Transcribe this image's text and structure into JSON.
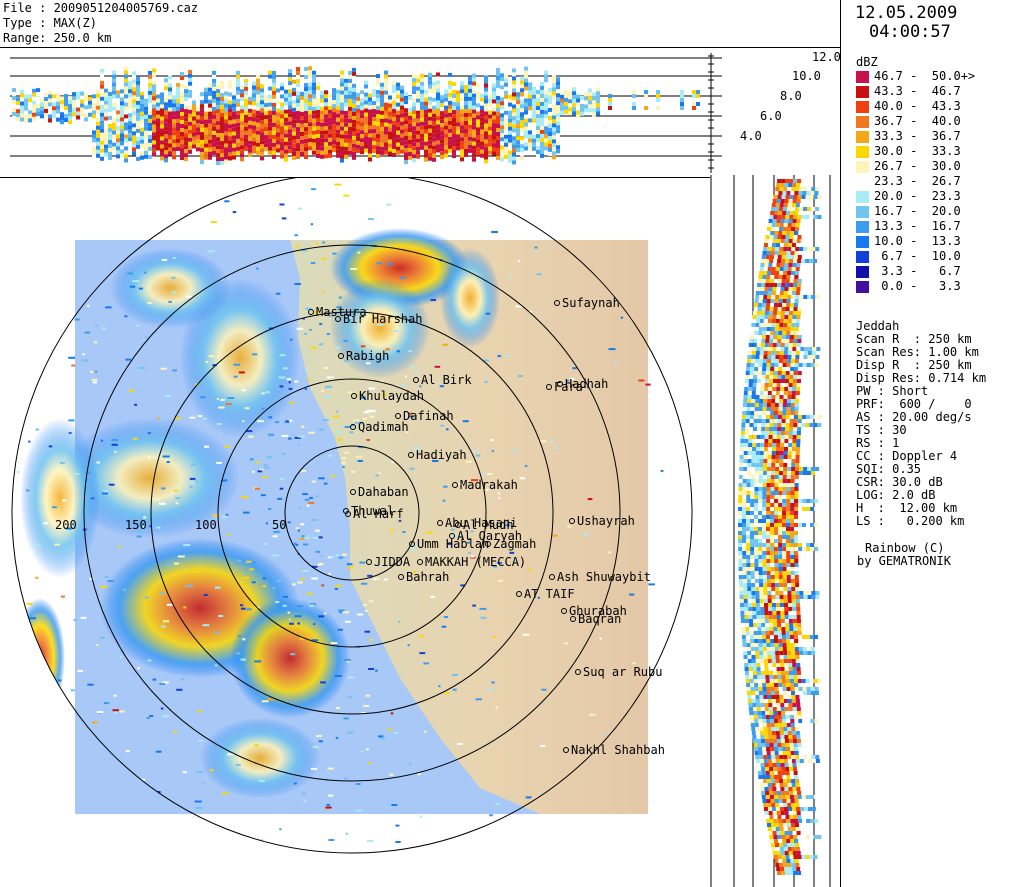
{
  "header": {
    "file_line": "File : 2009051204005769.caz",
    "type_line": "Type : MAX(Z)",
    "range_line": "Range: 250.0 km"
  },
  "datetime": {
    "date": "12.05.2009",
    "time": "04:00:57"
  },
  "legend": {
    "unit": "dBZ",
    "entries": [
      {
        "range": "46.7 -  50.0+>",
        "color": "#c8104a"
      },
      {
        "range": "43.3 -  46.7",
        "color": "#c81010"
      },
      {
        "range": "40.0 -  43.3",
        "color": "#f04010"
      },
      {
        "range": "36.7 -  40.0",
        "color": "#f07820"
      },
      {
        "range": "33.3 -  36.7",
        "color": "#f4a818"
      },
      {
        "range": "30.0 -  33.3",
        "color": "#fcd800"
      },
      {
        "range": "26.7 -  30.0",
        "color": "#fff4b8"
      },
      {
        "range": "23.3 -  26.7",
        "color": "#ffffff"
      },
      {
        "range": "20.0 -  23.3",
        "color": "#a8ecf8"
      },
      {
        "range": "16.7 -  20.0",
        "color": "#70c4f0"
      },
      {
        "range": "13.3 -  16.7",
        "color": "#3c9cf0"
      },
      {
        "range": "10.0 -  13.3",
        "color": "#1878f0"
      },
      {
        "range": " 6.7 -  10.0",
        "color": "#1040d8"
      },
      {
        "range": " 3.3 -   6.7",
        "color": "#1010a8"
      },
      {
        "range": " 0.0 -   3.3",
        "color": "#4010a0"
      }
    ]
  },
  "radar_info": [
    "Jeddah",
    "Scan R  : 250 km",
    "Scan Res: 1.00 km",
    "Disp R  : 250 km",
    "Disp Res: 0.714 km",
    "PW : Short",
    "PRF:  600 /    0",
    "AS : 20.00 deg/s",
    "TS : 30",
    "RS : 1",
    "CC : Doppler 4",
    "SQI: 0.35",
    "CSR: 30.0 dB",
    "LOG: 2.0 dB",
    "H  :  12.00 km",
    "LS :   0.200 km"
  ],
  "footer": {
    "palette": "Rainbow (C)",
    "vendor": "by GEMATRONIK"
  },
  "height_labels": [
    "12.0",
    "10.0",
    "8.0",
    "6.0",
    "4.0"
  ],
  "range_labels": [
    "200",
    "150",
    "100",
    "50"
  ],
  "cities": [
    {
      "name": "Sufaynah"
    },
    {
      "name": "Mastura"
    },
    {
      "name": "Bir Harshah"
    },
    {
      "name": "Rabigh"
    },
    {
      "name": "Al Birk"
    },
    {
      "name": "Hadhah"
    },
    {
      "name": "Fara"
    },
    {
      "name": "Khulaydah"
    },
    {
      "name": "Dafinah"
    },
    {
      "name": "Qadimah"
    },
    {
      "name": "Hadiyah"
    },
    {
      "name": "Madrakah"
    },
    {
      "name": "Dahaban"
    },
    {
      "name": "Thuwal"
    },
    {
      "name": "Al Harf"
    },
    {
      "name": "Ushayrah"
    },
    {
      "name": "Abu Hasani"
    },
    {
      "name": "Al Mudh"
    },
    {
      "name": "Al Qaryah"
    },
    {
      "name": "Umm Hablah"
    },
    {
      "name": "Zagmah"
    },
    {
      "name": "JIDDA"
    },
    {
      "name": "MAKKAH (MECCA)"
    },
    {
      "name": "Bahrah"
    },
    {
      "name": "Ash Shuwaybit"
    },
    {
      "name": "AT TAIF"
    },
    {
      "name": "Ghurabah"
    },
    {
      "name": "Baqran"
    },
    {
      "name": "Suq ar Rubu"
    },
    {
      "name": "Nakhl Shahbah"
    }
  ]
}
